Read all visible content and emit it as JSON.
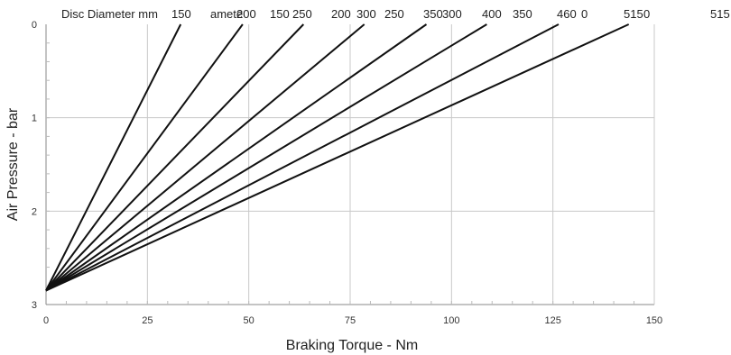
{
  "chart_data": {
    "type": "line",
    "xlabel": "Braking Torque - Nm",
    "ylabel": "Air Pressure - bar",
    "xlim": [
      0,
      150
    ],
    "ylim": [
      0,
      3
    ],
    "y_axis_inverted": true,
    "x_ticks": [
      "0",
      "25",
      "50",
      "75",
      "100",
      "125",
      "150"
    ],
    "y_ticks": [
      "0",
      "1",
      "2",
      "3"
    ],
    "grid": true,
    "line_color": "#111111",
    "grid_color": "#c8c8c8",
    "header_fragments": [
      "Disc Diameter mm",
      "150",
      "amete",
      "200",
      "150",
      "250",
      "200",
      "300",
      "250",
      "350",
      "300",
      "400",
      "350",
      "460",
      "0",
      "515",
      "0",
      "515"
    ],
    "series": [
      {
        "name": "150",
        "x": [
          0,
          33.2
        ],
        "y": [
          2.85,
          0
        ]
      },
      {
        "name": "200",
        "x": [
          0,
          48.5
        ],
        "y": [
          2.85,
          0
        ]
      },
      {
        "name": "250",
        "x": [
          0,
          63.5
        ],
        "y": [
          2.85,
          0
        ]
      },
      {
        "name": "300",
        "x": [
          0,
          78.5
        ],
        "y": [
          2.85,
          0
        ]
      },
      {
        "name": "350",
        "x": [
          0,
          93.8
        ],
        "y": [
          2.85,
          0
        ]
      },
      {
        "name": "400",
        "x": [
          0,
          108.7
        ],
        "y": [
          2.85,
          0
        ]
      },
      {
        "name": "460",
        "x": [
          0,
          126.4
        ],
        "y": [
          2.85,
          0
        ]
      },
      {
        "name": "515",
        "x": [
          0,
          143.7
        ],
        "y": [
          2.85,
          0
        ]
      }
    ]
  }
}
